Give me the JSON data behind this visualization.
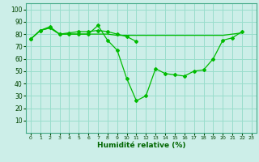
{
  "xlabel": "Humidité relative (%)",
  "bg_color": "#cceee8",
  "grid_color": "#99ddcc",
  "line_color": "#00bb00",
  "xlim": [
    -0.5,
    23.5
  ],
  "ylim": [
    0,
    105
  ],
  "yticks": [
    10,
    20,
    30,
    40,
    50,
    60,
    70,
    80,
    90,
    100
  ],
  "xticks": [
    0,
    1,
    2,
    3,
    4,
    5,
    6,
    7,
    8,
    9,
    10,
    11,
    12,
    13,
    14,
    15,
    16,
    17,
    18,
    19,
    20,
    21,
    22,
    23
  ],
  "curve1_x": [
    0,
    1,
    2,
    3,
    4,
    5,
    6,
    7,
    8,
    9,
    10,
    11,
    12,
    13,
    14,
    15,
    16,
    17,
    18,
    19,
    20,
    21,
    22
  ],
  "curve1_y": [
    76,
    83,
    86,
    80,
    80,
    80,
    80,
    87,
    75,
    67,
    44,
    26,
    30,
    52,
    48,
    47,
    46,
    50,
    51,
    60,
    75,
    77,
    82
  ],
  "curve2_x": [
    0,
    1,
    2,
    3,
    4,
    5,
    6,
    7,
    8,
    9,
    10,
    11
  ],
  "curve2_y": [
    76,
    83,
    85,
    80,
    81,
    82,
    82,
    83,
    82,
    80,
    78,
    74
  ],
  "curve3_x": [
    0,
    1,
    2,
    3,
    4,
    5,
    6,
    7,
    8,
    9,
    10,
    11,
    12,
    13,
    14,
    15,
    16,
    17,
    18,
    19,
    20,
    21,
    22
  ],
  "curve3_y": [
    76,
    83,
    85,
    80,
    80,
    80,
    80,
    80,
    80,
    79,
    79,
    79,
    79,
    79,
    79,
    79,
    79,
    79,
    79,
    79,
    79,
    80,
    81
  ]
}
